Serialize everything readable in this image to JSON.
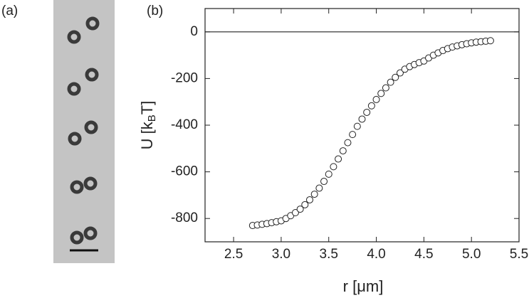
{
  "image_panel": {
    "label": "(a)"
  },
  "chart_data": {
    "type": "scatter",
    "panel_label": "(b)",
    "xlabel": "r [μm]",
    "ylabel": {
      "main": "U [k",
      "sub": "B",
      "end": "T]"
    },
    "x": [
      2.7,
      2.75,
      2.8,
      2.85,
      2.9,
      2.95,
      3.0,
      3.05,
      3.1,
      3.15,
      3.2,
      3.25,
      3.3,
      3.35,
      3.4,
      3.45,
      3.5,
      3.55,
      3.6,
      3.65,
      3.7,
      3.75,
      3.8,
      3.85,
      3.9,
      3.95,
      4.0,
      4.05,
      4.1,
      4.15,
      4.2,
      4.25,
      4.3,
      4.35,
      4.4,
      4.45,
      4.5,
      4.55,
      4.6,
      4.65,
      4.7,
      4.75,
      4.8,
      4.85,
      4.9,
      4.95,
      5.0,
      5.05,
      5.1,
      5.15,
      5.2
    ],
    "values": [
      -830,
      -828,
      -825,
      -822,
      -818,
      -814,
      -810,
      -800,
      -788,
      -775,
      -760,
      -741,
      -720,
      -696,
      -670,
      -641,
      -610,
      -578,
      -545,
      -510,
      -475,
      -440,
      -405,
      -374,
      -345,
      -317,
      -290,
      -264,
      -240,
      -216,
      -195,
      -176,
      -160,
      -149,
      -140,
      -132,
      -125,
      -112,
      -100,
      -90,
      -80,
      -72,
      -65,
      -60,
      -55,
      -51,
      -47,
      -44,
      -42,
      -40,
      -38
    ],
    "color": "#ffffff",
    "edge_color": "#222222",
    "xlim": [
      2.2,
      5.5
    ],
    "ylim": [
      -900,
      100
    ],
    "xticks": [
      2.5,
      {
        "value": 3,
        "label": "3.0"
      },
      3.5,
      {
        "value": 4,
        "label": "4.0"
      },
      4.5,
      {
        "value": 5,
        "label": "5.0"
      },
      5.5
    ],
    "yticks": [
      -800,
      -600,
      -400,
      -200,
      0
    ],
    "hline": 0
  }
}
